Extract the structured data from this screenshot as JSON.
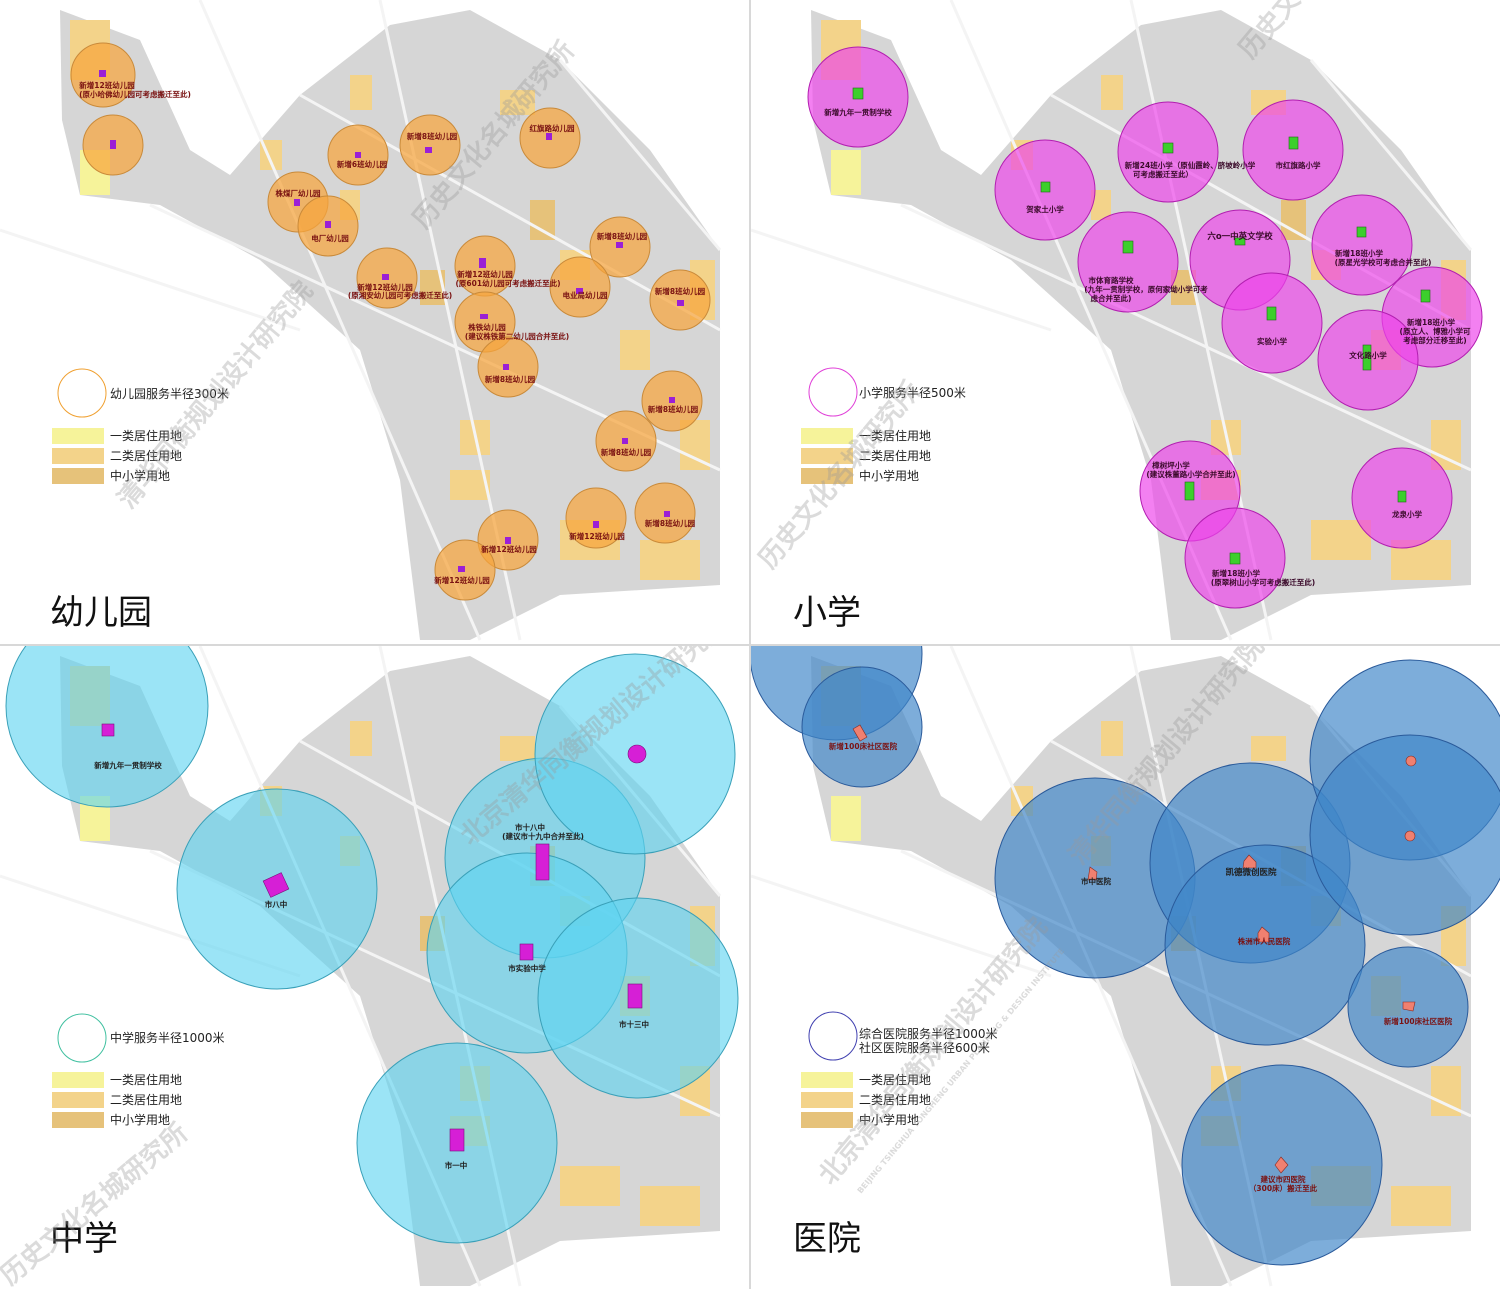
{
  "colors": {
    "residential_class1": "#f6f39a",
    "residential_class2": "#f3d38a",
    "school_land": "#e6c27a",
    "urban_base": "#d6d6d6",
    "kindergarten_circle": "#f7a53d",
    "primary_circle": "#ee55e8",
    "middle_circle": "#5dd3f0",
    "hospital_circle": "#3f86c8",
    "kindergarten_site": "#9b1fd6",
    "primary_site": "#3ccf2c",
    "middle_site": "#d61fd6",
    "hospital_site": "#f08070"
  },
  "legend": {
    "class1": "一类居住用地",
    "class2": "二类居住用地",
    "school": "中小学用地"
  },
  "watermarks": [
    "清华同衡规划设计研究院",
    "历史文化名城研究所",
    "北京清华同衡规划设计研究院",
    "BEIJING TSINGHUA TONGHENG URBAN PLANNING & DESIGN INSTITUTE"
  ],
  "kindergarten": {
    "title": "幼儿园",
    "radius_label": "幼儿园服务半径300米",
    "sites": [
      {
        "name": "新增12班幼儿园",
        "note": "(原小哈佛幼儿园可考虑搬迁至此)"
      },
      {
        "name": "",
        "note": ""
      },
      {
        "name": "新增6班幼儿园",
        "note": ""
      },
      {
        "name": "新增8班幼儿园",
        "note": ""
      },
      {
        "name": "红旗路幼儿园",
        "note": ""
      },
      {
        "name": "株煤厂幼儿园",
        "note": ""
      },
      {
        "name": "电厂幼儿园",
        "note": ""
      },
      {
        "name": "新增12班幼儿园",
        "note": "(原湘安幼儿园可考虑搬迁至此)"
      },
      {
        "name": "新增12班幼儿园",
        "note": "(原601幼儿园可考虑搬迁至此)"
      },
      {
        "name": "新增8班幼儿园",
        "note": ""
      },
      {
        "name": "电业局幼儿园",
        "note": ""
      },
      {
        "name": "新增8班幼儿园",
        "note": ""
      },
      {
        "name": "株铁幼儿园",
        "note": "(建议株铁第二幼儿园合并至此)"
      },
      {
        "name": "新增8班幼儿园",
        "note": ""
      },
      {
        "name": "新增8班幼儿园",
        "note": ""
      },
      {
        "name": "新增8班幼儿园",
        "note": ""
      },
      {
        "name": "新增8班幼儿园",
        "note": ""
      },
      {
        "name": "新增12班幼儿园",
        "note": ""
      },
      {
        "name": "新增12班幼儿园",
        "note": ""
      },
      {
        "name": "新增12班幼儿园",
        "note": ""
      }
    ]
  },
  "primary": {
    "title": "小学",
    "radius_label": "小学服务半径500米",
    "sites": [
      {
        "name": "新增九年一贯制学校",
        "note": "",
        "note2": ""
      },
      {
        "name": "贺家土小学",
        "note": "",
        "note2": ""
      },
      {
        "name": "新增24班小学（原仙霞岭、脐坡岭小学",
        "note": "可考虑搬迁至此）",
        "note2": ""
      },
      {
        "name": "市红旗路小学",
        "note": "",
        "note2": ""
      },
      {
        "name": "市体育路学校",
        "note": "(九年一贯制学校，原何家坳小学可考",
        "note2": "虑合并至此)"
      },
      {
        "name": "六o一中英文学校",
        "note": "",
        "note2": ""
      },
      {
        "name": "新增18班小学",
        "note": "(原星光学校可考虑合并至此)",
        "note2": ""
      },
      {
        "name": "实验小学",
        "note": "",
        "note2": ""
      },
      {
        "name": "新增18班小学",
        "note": "(原立人、博雅小学可",
        "note2": "考虑部分迁移至此)"
      },
      {
        "name": "文化路小学",
        "note": "",
        "note2": ""
      },
      {
        "name": "樟树坪小学",
        "note": "(建议株董路小学合并至此)",
        "note2": ""
      },
      {
        "name": "新增18班小学",
        "note": "(原翠树山小学可考虑搬迁至此)",
        "note2": ""
      },
      {
        "name": "龙泉小学",
        "note": "",
        "note2": ""
      }
    ]
  },
  "middle": {
    "title": "中学",
    "radius_label": "中学服务半径1000米",
    "sites": [
      {
        "name": "新增九年一贯制学校",
        "note": ""
      },
      {
        "name": "市八中",
        "note": ""
      },
      {
        "name": "市十八中",
        "note": "(建议市十九中合并至此)"
      },
      {
        "name": "市实验中学",
        "note": ""
      },
      {
        "name": "市十三中",
        "note": ""
      },
      {
        "name": "市一中",
        "note": ""
      },
      {
        "name": "",
        "note": ""
      }
    ]
  },
  "hospital": {
    "title": "医院",
    "radius_label_general": "综合医院服务半径1000米",
    "radius_label_community": "社区医院服务半径600米",
    "sites": [
      {
        "name": "",
        "note": ""
      },
      {
        "name": "新增100床社区医院",
        "note": ""
      },
      {
        "name": "市中医院",
        "note": ""
      },
      {
        "name": "凯德微创医院",
        "note": ""
      },
      {
        "name": "株洲市人民医院",
        "note": ""
      },
      {
        "name": "",
        "note": ""
      },
      {
        "name": "",
        "note": ""
      },
      {
        "name": "新增100床社区医院",
        "note": ""
      },
      {
        "name": "建议市四医院",
        "note": "（300床）搬迁至此"
      }
    ]
  }
}
